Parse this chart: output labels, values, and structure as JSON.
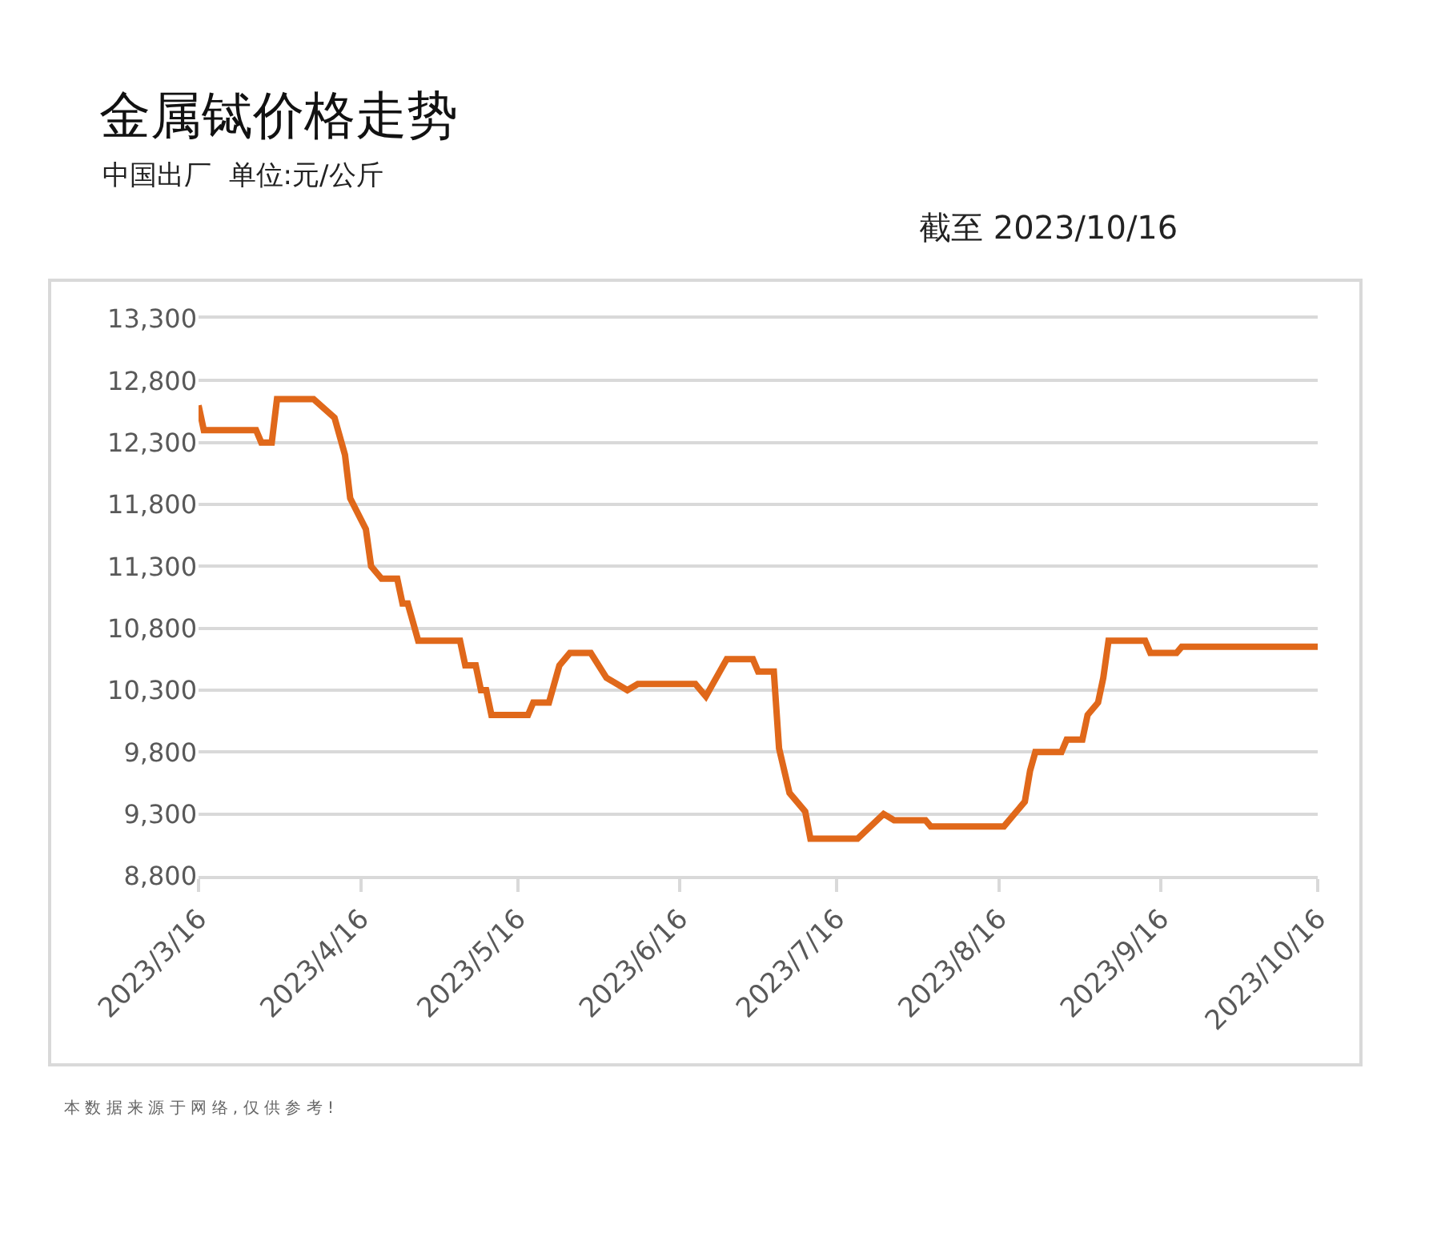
{
  "chart_data": {
    "type": "line",
    "title": "金属铽价格走势",
    "subtitle": "中国出厂  单位:元/公斤",
    "annotations": [
      "截至 2023/10/16",
      "本 数 据 来 源 于 网 络 , 仅 供 参 考 !"
    ],
    "x": [
      "2023-03-16",
      "2023-03-17",
      "2023-03-27",
      "2023-03-28",
      "2023-03-30",
      "2023-03-31",
      "2023-04-07",
      "2023-04-11",
      "2023-04-13",
      "2023-04-14",
      "2023-04-17",
      "2023-04-18",
      "2023-04-20",
      "2023-04-23",
      "2023-04-24",
      "2023-04-25",
      "2023-04-27",
      "2023-05-05",
      "2023-05-06",
      "2023-05-08",
      "2023-05-09",
      "2023-05-10",
      "2023-05-11",
      "2023-05-18",
      "2023-05-19",
      "2023-05-22",
      "2023-05-24",
      "2023-05-26",
      "2023-05-30",
      "2023-06-02",
      "2023-06-06",
      "2023-06-08",
      "2023-06-19",
      "2023-06-21",
      "2023-06-25",
      "2023-06-30",
      "2023-07-01",
      "2023-07-04",
      "2023-07-05",
      "2023-07-07",
      "2023-07-10",
      "2023-07-11",
      "2023-07-20",
      "2023-07-25",
      "2023-07-27",
      "2023-08-02",
      "2023-08-03",
      "2023-08-17",
      "2023-08-21",
      "2023-08-22",
      "2023-08-23",
      "2023-08-28",
      "2023-08-29",
      "2023-09-01",
      "2023-09-02",
      "2023-09-04",
      "2023-09-05",
      "2023-09-06",
      "2023-09-13",
      "2023-09-14",
      "2023-09-19",
      "2023-09-20",
      "2023-10-16"
    ],
    "series": [
      {
        "color": "#e0681a",
        "values": [
          12600,
          12400,
          12400,
          12300,
          12300,
          12650,
          12650,
          12500,
          12200,
          11850,
          11600,
          11300,
          11200,
          11200,
          11000,
          11000,
          10700,
          10700,
          10500,
          10500,
          10300,
          10300,
          10100,
          10100,
          10200,
          10200,
          10500,
          10600,
          10600,
          10400,
          10300,
          10350,
          10350,
          10250,
          10550,
          10550,
          10450,
          10450,
          9830,
          9470,
          9320,
          9100,
          9100,
          9300,
          9250,
          9250,
          9200,
          9200,
          9400,
          9650,
          9800,
          9800,
          9900,
          9900,
          10100,
          10200,
          10400,
          10700,
          10700,
          10600,
          10600,
          10650,
          10650
        ]
      }
    ],
    "xlim": [
      "2023-03-16",
      "2023-10-16"
    ],
    "xticks": [
      {
        "value": "2023-03-16",
        "label": "2023/3/16"
      },
      {
        "value": "2023-04-16",
        "label": "2023/4/16"
      },
      {
        "value": "2023-05-16",
        "label": "2023/5/16"
      },
      {
        "value": "2023-06-16",
        "label": "2023/6/16"
      },
      {
        "value": "2023-07-16",
        "label": "2023/7/16"
      },
      {
        "value": "2023-08-16",
        "label": "2023/8/16"
      },
      {
        "value": "2023-09-16",
        "label": "2023/9/16"
      },
      {
        "value": "2023-10-16",
        "label": "2023/10/16"
      }
    ],
    "ylim": [
      8800,
      13300
    ],
    "yticks": [
      {
        "value": 8800,
        "label": "8,800"
      },
      {
        "value": 9300,
        "label": "9,300"
      },
      {
        "value": 9800,
        "label": "9,800"
      },
      {
        "value": 10300,
        "label": "10,300"
      },
      {
        "value": 10800,
        "label": "10,800"
      },
      {
        "value": 11300,
        "label": "11,300"
      },
      {
        "value": 11800,
        "label": "11,800"
      },
      {
        "value": 12300,
        "label": "12,300"
      },
      {
        "value": 12800,
        "label": "12,800"
      },
      {
        "value": 13300,
        "label": "13,300"
      }
    ],
    "grid": "y",
    "marker": "none",
    "line_style": "solid"
  }
}
